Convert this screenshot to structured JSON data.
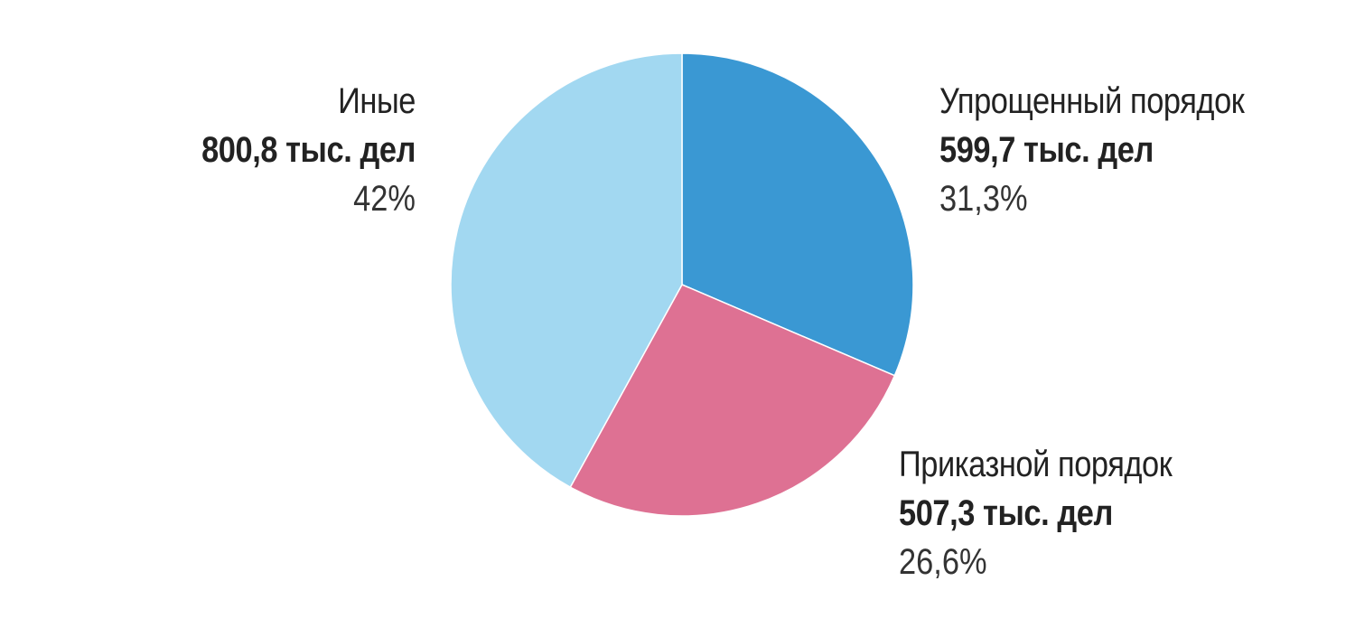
{
  "chart_data": {
    "type": "pie",
    "start_angle": "12 o'clock",
    "direction": "clockwise",
    "slices": [
      {
        "label": "Упрощенный порядок",
        "value_text": "599,7 тыс. дел",
        "value": 599.7,
        "percent": 31.3,
        "percent_text": "31,3%",
        "color": "#3a98d3"
      },
      {
        "label": "Приказной порядок",
        "value_text": "507,3 тыс. дел",
        "value": 507.3,
        "percent": 26.6,
        "percent_text": "26,6%",
        "color": "#de7193"
      },
      {
        "label": "Иные",
        "value_text": "800,8 тыс. дел",
        "value": 800.8,
        "percent": 42,
        "percent_text": "42%",
        "color": "#a2d8f1"
      }
    ]
  }
}
